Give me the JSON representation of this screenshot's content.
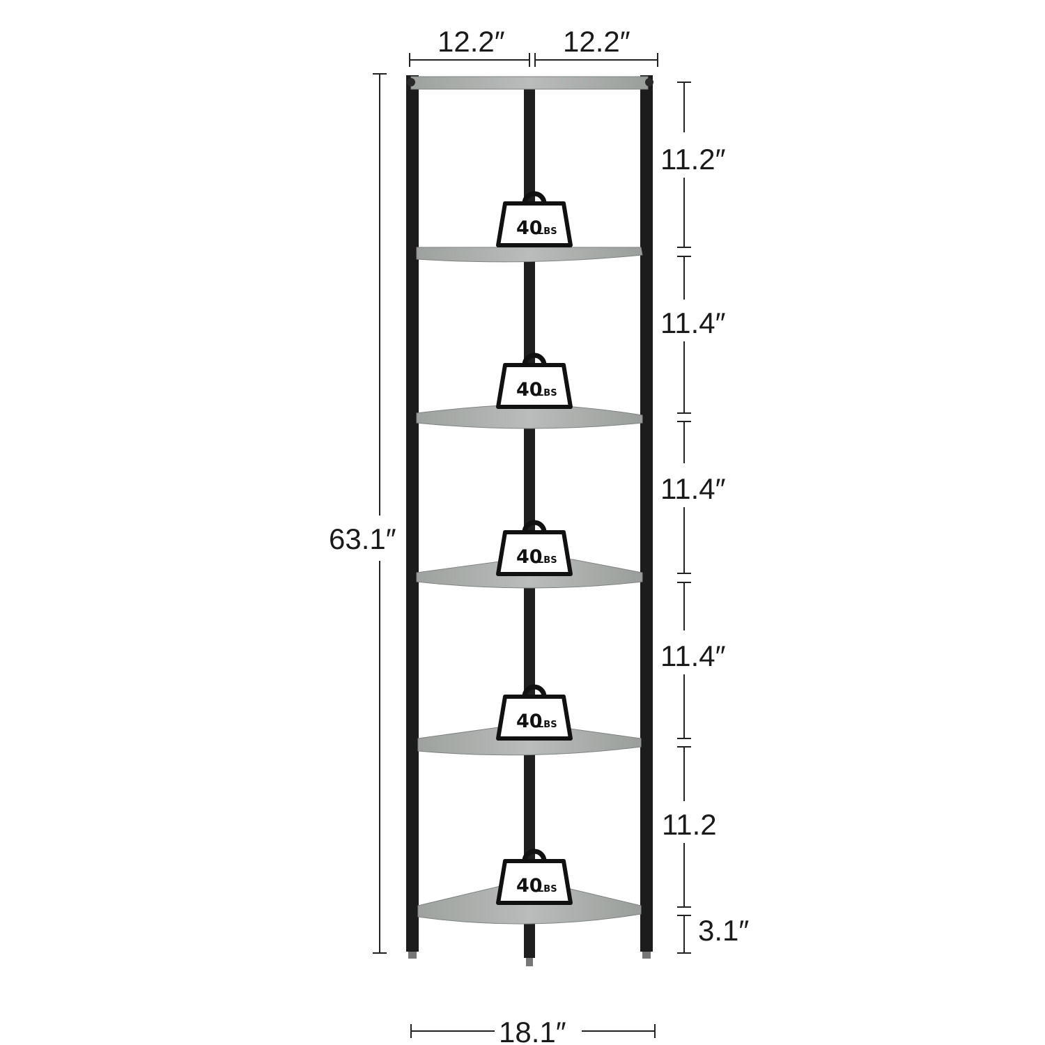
{
  "dimensions": {
    "top_left_width": "12.2″",
    "top_right_width": "12.2″",
    "total_height": "63.1″",
    "bottom_width": "18.1″",
    "spacings": [
      "11.2″",
      "11.4″",
      "11.4″",
      "11.4″",
      "11.2",
      "3.1″"
    ]
  },
  "load_badges": [
    {
      "number": "40",
      "unit": "LBS"
    },
    {
      "number": "40",
      "unit": "LBS"
    },
    {
      "number": "40",
      "unit": "LBS"
    },
    {
      "number": "40",
      "unit": "LBS"
    },
    {
      "number": "40",
      "unit": "LBS"
    }
  ],
  "colors": {
    "frame": "#1c1c1c",
    "shelf": "#a7aba8",
    "shelf_edge": "#8c908d",
    "dimension_line": "#222222"
  }
}
